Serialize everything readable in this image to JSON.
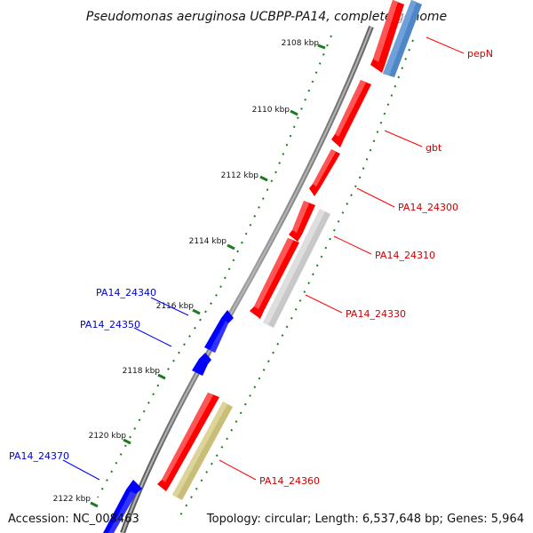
{
  "title": "Pseudomonas aeruginosa UCBPP-PA14, complete genome",
  "ticks": [
    "2108 kbp",
    "2110 kbp",
    "2112 kbp",
    "2114 kbp",
    "2116 kbp",
    "2118 kbp",
    "2120 kbp",
    "2122 kbp"
  ],
  "genes": [
    {
      "name": "pepN",
      "strand": "forward",
      "color": "#ff0000"
    },
    {
      "name": "gbt",
      "strand": "forward",
      "color": "#ff0000"
    },
    {
      "name": "PA14_24300",
      "strand": "forward",
      "color": "#ff0000"
    },
    {
      "name": "PA14_24310",
      "strand": "forward",
      "color": "#ff0000"
    },
    {
      "name": "PA14_24330",
      "strand": "forward",
      "color": "#ff0000"
    },
    {
      "name": "PA14_24340",
      "strand": "reverse",
      "color": "#0000ff"
    },
    {
      "name": "PA14_24350",
      "strand": "reverse",
      "color": "#0000ff"
    },
    {
      "name": "PA14_24360",
      "strand": "forward",
      "color": "#ff0000"
    },
    {
      "name": "PA14_24370",
      "strand": "reverse",
      "color": "#0000ff"
    }
  ],
  "colors": {
    "forward_gene": "#ff0000",
    "reverse_gene": "#0000ff",
    "feature_gray": "#c8c8c8",
    "feature_steelblue": "#4f86c6",
    "feature_olive": "#c8be78",
    "tick_green": "#1e7a1e",
    "backbone": "#808080"
  },
  "accession": "Accession: NC_008463",
  "topology": "Topology: circular; Length: 6,537,648 bp; Genes: 5,964"
}
